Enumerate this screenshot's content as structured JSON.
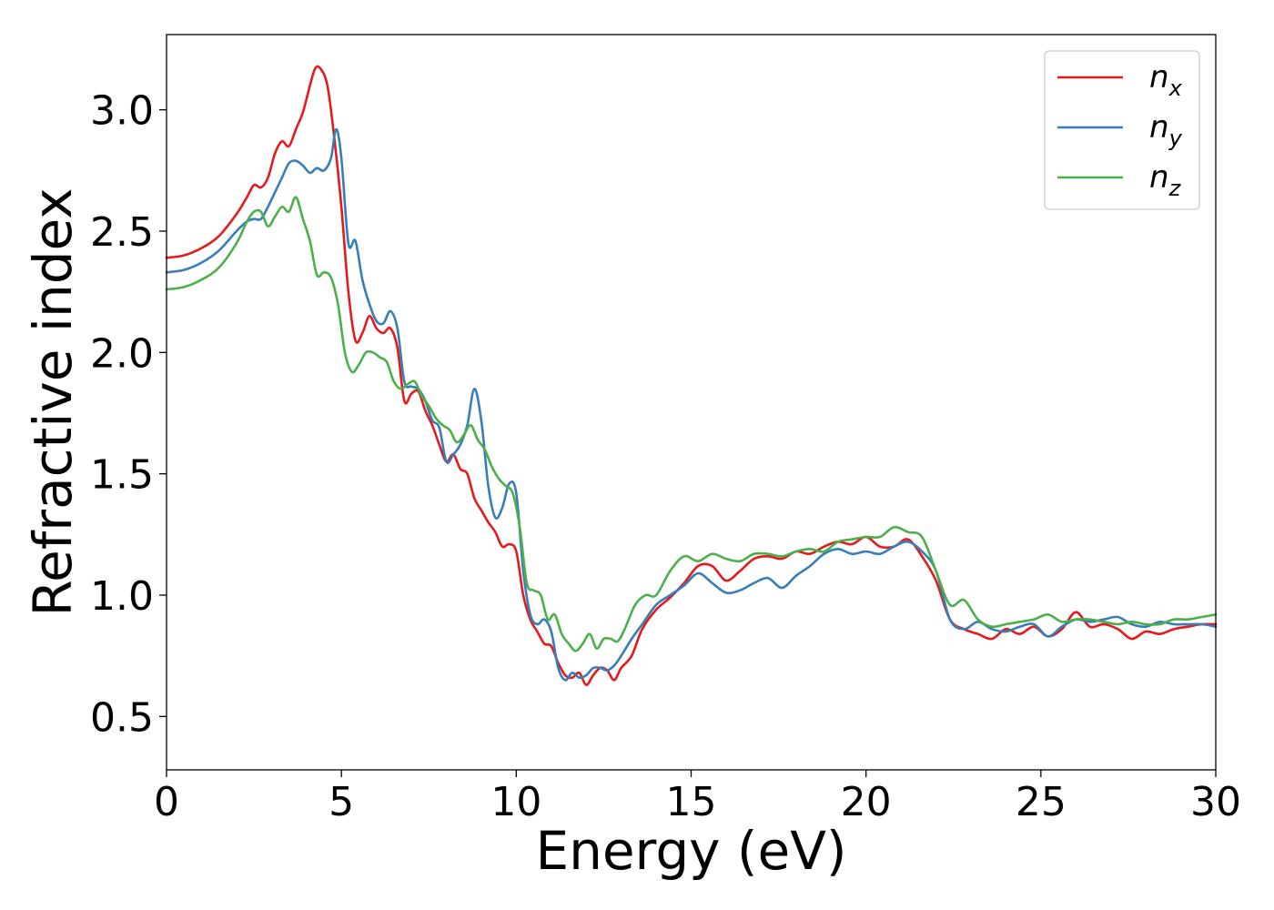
{
  "chart_data": {
    "type": "line",
    "xlabel": "Energy (eV)",
    "ylabel": "Refractive index",
    "xlim": [
      0,
      30
    ],
    "ylim": [
      0.28,
      3.31
    ],
    "xticks": [
      "0",
      "5",
      "10",
      "15",
      "20",
      "25",
      "30"
    ],
    "yticks": [
      "0.5",
      "1.0",
      "1.5",
      "2.0",
      "2.5",
      "3.0"
    ],
    "grid": false,
    "legend_position": "top-right",
    "series": [
      {
        "name": "n",
        "subscript": "x",
        "color": "#e41a1c",
        "x": [
          0,
          0.5,
          1,
          1.5,
          2,
          2.3,
          2.5,
          2.7,
          2.9,
          3.1,
          3.3,
          3.5,
          3.7,
          3.9,
          4.1,
          4.25,
          4.4,
          4.6,
          4.8,
          5.0,
          5.2,
          5.4,
          5.6,
          5.8,
          6.0,
          6.2,
          6.4,
          6.6,
          6.8,
          7.0,
          7.2,
          7.4,
          7.6,
          7.8,
          8.0,
          8.2,
          8.4,
          8.6,
          8.8,
          9.0,
          9.2,
          9.4,
          9.6,
          9.8,
          10.0,
          10.2,
          10.4,
          10.6,
          10.8,
          11.0,
          11.2,
          11.4,
          11.6,
          11.8,
          12.0,
          12.2,
          12.4,
          12.6,
          12.8,
          13.0,
          13.3,
          13.6,
          14.0,
          14.4,
          14.8,
          15.2,
          15.6,
          16.0,
          16.4,
          16.8,
          17.2,
          17.6,
          18.0,
          18.4,
          18.8,
          19.2,
          19.6,
          20.0,
          20.4,
          20.8,
          21.2,
          21.6,
          22.0,
          22.4,
          22.8,
          23.2,
          23.6,
          24.0,
          24.4,
          24.8,
          25.2,
          25.6,
          26.0,
          26.4,
          26.8,
          27.2,
          27.6,
          28.0,
          28.4,
          28.8,
          29.2,
          29.6,
          30.0
        ],
        "y": [
          2.39,
          2.4,
          2.43,
          2.48,
          2.57,
          2.64,
          2.69,
          2.68,
          2.72,
          2.82,
          2.87,
          2.85,
          2.92,
          2.99,
          3.1,
          3.17,
          3.17,
          3.1,
          2.88,
          2.6,
          2.25,
          2.05,
          2.08,
          2.15,
          2.1,
          2.08,
          2.1,
          2.02,
          1.8,
          1.83,
          1.84,
          1.76,
          1.7,
          1.62,
          1.55,
          1.58,
          1.52,
          1.5,
          1.4,
          1.35,
          1.3,
          1.26,
          1.2,
          1.21,
          1.18,
          1.0,
          0.9,
          0.85,
          0.8,
          0.79,
          0.72,
          0.67,
          0.66,
          0.68,
          0.63,
          0.67,
          0.7,
          0.69,
          0.65,
          0.7,
          0.75,
          0.86,
          0.94,
          0.99,
          1.05,
          1.12,
          1.12,
          1.06,
          1.1,
          1.15,
          1.16,
          1.15,
          1.18,
          1.17,
          1.2,
          1.22,
          1.21,
          1.24,
          1.2,
          1.2,
          1.23,
          1.16,
          1.06,
          0.9,
          0.86,
          0.84,
          0.82,
          0.86,
          0.84,
          0.87,
          0.83,
          0.86,
          0.93,
          0.87,
          0.88,
          0.86,
          0.82,
          0.85,
          0.84,
          0.86,
          0.87,
          0.88,
          0.88
        ]
      },
      {
        "name": "n",
        "subscript": "y",
        "color": "#377eb8",
        "x": [
          0,
          0.5,
          1,
          1.5,
          2,
          2.3,
          2.5,
          2.7,
          2.9,
          3.1,
          3.3,
          3.5,
          3.7,
          3.9,
          4.1,
          4.3,
          4.5,
          4.7,
          4.85,
          5.0,
          5.2,
          5.4,
          5.6,
          5.8,
          6.0,
          6.2,
          6.4,
          6.6,
          6.8,
          7.0,
          7.2,
          7.4,
          7.6,
          7.8,
          8.0,
          8.2,
          8.4,
          8.6,
          8.8,
          9.0,
          9.2,
          9.4,
          9.6,
          9.8,
          10.0,
          10.2,
          10.4,
          10.6,
          10.8,
          11.0,
          11.2,
          11.4,
          11.6,
          11.8,
          12.0,
          12.2,
          12.4,
          12.6,
          12.8,
          13.0,
          13.3,
          13.6,
          14.0,
          14.4,
          14.8,
          15.2,
          15.6,
          16.0,
          16.4,
          16.8,
          17.2,
          17.6,
          18.0,
          18.4,
          18.8,
          19.2,
          19.6,
          20.0,
          20.4,
          20.8,
          21.2,
          21.6,
          22.0,
          22.4,
          22.8,
          23.2,
          23.6,
          24.0,
          24.4,
          24.8,
          25.2,
          25.6,
          26.0,
          26.4,
          26.8,
          27.2,
          27.6,
          28.0,
          28.4,
          28.8,
          29.2,
          29.6,
          30.0
        ],
        "y": [
          2.33,
          2.34,
          2.37,
          2.42,
          2.5,
          2.54,
          2.55,
          2.55,
          2.6,
          2.66,
          2.72,
          2.78,
          2.79,
          2.77,
          2.74,
          2.76,
          2.75,
          2.8,
          2.92,
          2.8,
          2.45,
          2.46,
          2.3,
          2.2,
          2.13,
          2.12,
          2.17,
          2.1,
          1.88,
          1.86,
          1.85,
          1.8,
          1.72,
          1.69,
          1.55,
          1.58,
          1.62,
          1.7,
          1.85,
          1.72,
          1.45,
          1.32,
          1.36,
          1.46,
          1.42,
          1.1,
          0.92,
          0.88,
          0.9,
          0.85,
          0.7,
          0.65,
          0.68,
          0.66,
          0.67,
          0.7,
          0.7,
          0.69,
          0.71,
          0.75,
          0.82,
          0.88,
          0.96,
          1.0,
          1.04,
          1.09,
          1.05,
          1.01,
          1.02,
          1.05,
          1.07,
          1.03,
          1.08,
          1.12,
          1.17,
          1.19,
          1.17,
          1.18,
          1.17,
          1.2,
          1.22,
          1.18,
          1.1,
          0.9,
          0.86,
          0.89,
          0.86,
          0.85,
          0.87,
          0.88,
          0.83,
          0.87,
          0.9,
          0.89,
          0.9,
          0.91,
          0.88,
          0.87,
          0.89,
          0.88,
          0.88,
          0.88,
          0.87
        ]
      },
      {
        "name": "n",
        "subscript": "z",
        "color": "#4daf4a",
        "x": [
          0,
          0.5,
          1,
          1.5,
          2,
          2.3,
          2.5,
          2.7,
          2.9,
          3.1,
          3.3,
          3.5,
          3.7,
          3.9,
          4.1,
          4.3,
          4.5,
          4.7,
          4.9,
          5.1,
          5.3,
          5.5,
          5.7,
          5.9,
          6.1,
          6.3,
          6.5,
          6.7,
          6.9,
          7.1,
          7.3,
          7.5,
          7.7,
          7.9,
          8.1,
          8.3,
          8.5,
          8.7,
          8.9,
          9.1,
          9.3,
          9.5,
          9.7,
          9.9,
          10.1,
          10.3,
          10.5,
          10.7,
          10.9,
          11.1,
          11.3,
          11.5,
          11.7,
          11.9,
          12.1,
          12.3,
          12.5,
          12.7,
          12.9,
          13.1,
          13.4,
          13.7,
          14.0,
          14.4,
          14.8,
          15.2,
          15.6,
          16.0,
          16.4,
          16.8,
          17.2,
          17.6,
          18.0,
          18.4,
          18.8,
          19.2,
          19.6,
          20.0,
          20.4,
          20.8,
          21.2,
          21.6,
          22.0,
          22.4,
          22.8,
          23.2,
          23.6,
          24.0,
          24.4,
          24.8,
          25.2,
          25.6,
          26.0,
          26.4,
          26.8,
          27.2,
          27.6,
          28.0,
          28.4,
          28.8,
          29.2,
          29.6,
          30.0
        ],
        "y": [
          2.26,
          2.27,
          2.3,
          2.35,
          2.45,
          2.54,
          2.58,
          2.58,
          2.52,
          2.56,
          2.6,
          2.58,
          2.64,
          2.55,
          2.46,
          2.32,
          2.33,
          2.31,
          2.2,
          2.0,
          1.92,
          1.95,
          2.0,
          2.0,
          1.98,
          1.96,
          1.88,
          1.85,
          1.87,
          1.88,
          1.82,
          1.78,
          1.73,
          1.7,
          1.68,
          1.63,
          1.66,
          1.7,
          1.64,
          1.6,
          1.53,
          1.48,
          1.45,
          1.42,
          1.28,
          1.05,
          1.02,
          1.0,
          0.9,
          0.92,
          0.84,
          0.8,
          0.77,
          0.8,
          0.84,
          0.78,
          0.82,
          0.82,
          0.81,
          0.86,
          0.96,
          1.0,
          1.0,
          1.1,
          1.16,
          1.14,
          1.17,
          1.15,
          1.14,
          1.17,
          1.17,
          1.16,
          1.18,
          1.19,
          1.18,
          1.22,
          1.23,
          1.24,
          1.24,
          1.28,
          1.26,
          1.24,
          1.1,
          0.96,
          0.98,
          0.9,
          0.87,
          0.88,
          0.89,
          0.9,
          0.92,
          0.89,
          0.9,
          0.9,
          0.89,
          0.88,
          0.89,
          0.88,
          0.88,
          0.9,
          0.9,
          0.91,
          0.92
        ]
      }
    ]
  }
}
